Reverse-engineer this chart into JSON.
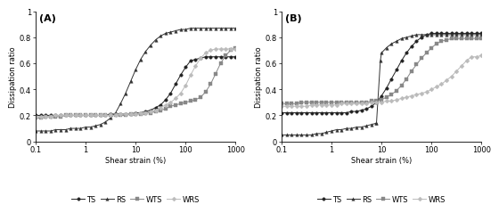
{
  "panel_A": {
    "label": "(A)",
    "TS": {
      "x": [
        0.1,
        0.13,
        0.16,
        0.2,
        0.25,
        0.32,
        0.4,
        0.5,
        0.63,
        0.79,
        1.0,
        1.26,
        1.58,
        2.0,
        2.51,
        3.16,
        3.98,
        5.01,
        6.31,
        7.94,
        10.0,
        12.6,
        15.8,
        20.0,
        25.1,
        31.6,
        39.8,
        50.1,
        63.1,
        79.4,
        100,
        126,
        158,
        200,
        251,
        316,
        398,
        501,
        631,
        794,
        1000
      ],
      "y": [
        0.2,
        0.2,
        0.2,
        0.2,
        0.2,
        0.2,
        0.2,
        0.2,
        0.2,
        0.2,
        0.2,
        0.2,
        0.2,
        0.2,
        0.2,
        0.21,
        0.21,
        0.21,
        0.21,
        0.21,
        0.22,
        0.22,
        0.23,
        0.24,
        0.26,
        0.28,
        0.32,
        0.37,
        0.44,
        0.51,
        0.57,
        0.62,
        0.63,
        0.64,
        0.65,
        0.65,
        0.65,
        0.65,
        0.65,
        0.65,
        0.65
      ],
      "marker": "o",
      "color": "#222222",
      "markersize": 2.5,
      "linestyle": "-"
    },
    "RS": {
      "x": [
        0.1,
        0.13,
        0.16,
        0.2,
        0.25,
        0.32,
        0.4,
        0.5,
        0.63,
        0.79,
        1.0,
        1.26,
        1.58,
        2.0,
        2.51,
        3.16,
        3.98,
        5.01,
        6.31,
        7.94,
        10.0,
        12.6,
        15.8,
        20.0,
        25.1,
        31.6,
        39.8,
        50.1,
        63.1,
        79.4,
        100,
        126,
        158,
        200,
        251,
        316,
        398,
        501,
        631,
        794,
        1000
      ],
      "y": [
        0.08,
        0.08,
        0.08,
        0.08,
        0.09,
        0.09,
        0.09,
        0.1,
        0.1,
        0.1,
        0.11,
        0.11,
        0.12,
        0.13,
        0.15,
        0.18,
        0.22,
        0.29,
        0.37,
        0.46,
        0.55,
        0.63,
        0.69,
        0.74,
        0.78,
        0.81,
        0.83,
        0.84,
        0.85,
        0.86,
        0.86,
        0.87,
        0.87,
        0.87,
        0.87,
        0.87,
        0.87,
        0.87,
        0.87,
        0.87,
        0.87
      ],
      "marker": "^",
      "color": "#333333",
      "markersize": 2.5,
      "linestyle": "-"
    },
    "WTS": {
      "x": [
        0.1,
        0.13,
        0.16,
        0.2,
        0.25,
        0.32,
        0.4,
        0.5,
        0.63,
        0.79,
        1.0,
        1.26,
        1.58,
        2.0,
        2.51,
        3.16,
        3.98,
        5.01,
        6.31,
        7.94,
        10.0,
        12.6,
        15.8,
        20.0,
        25.1,
        31.6,
        39.8,
        50.1,
        63.1,
        79.4,
        100,
        126,
        158,
        200,
        251,
        316,
        398,
        501,
        631,
        794,
        1000
      ],
      "y": [
        0.18,
        0.18,
        0.19,
        0.19,
        0.19,
        0.19,
        0.2,
        0.2,
        0.2,
        0.2,
        0.2,
        0.2,
        0.2,
        0.2,
        0.2,
        0.2,
        0.2,
        0.2,
        0.2,
        0.21,
        0.21,
        0.21,
        0.22,
        0.22,
        0.23,
        0.24,
        0.25,
        0.27,
        0.28,
        0.29,
        0.3,
        0.31,
        0.32,
        0.34,
        0.38,
        0.44,
        0.52,
        0.6,
        0.66,
        0.7,
        0.72
      ],
      "marker": "s",
      "color": "#888888",
      "markersize": 2.5,
      "linestyle": "-"
    },
    "WRS": {
      "x": [
        0.1,
        0.13,
        0.16,
        0.2,
        0.25,
        0.32,
        0.4,
        0.5,
        0.63,
        0.79,
        1.0,
        1.26,
        1.58,
        2.0,
        2.51,
        3.16,
        3.98,
        5.01,
        6.31,
        7.94,
        10.0,
        12.6,
        15.8,
        20.0,
        25.1,
        31.6,
        39.8,
        50.1,
        63.1,
        79.4,
        100,
        126,
        158,
        200,
        251,
        316,
        398,
        501,
        631,
        794,
        1000
      ],
      "y": [
        0.19,
        0.19,
        0.19,
        0.19,
        0.2,
        0.2,
        0.2,
        0.2,
        0.2,
        0.2,
        0.2,
        0.2,
        0.2,
        0.2,
        0.2,
        0.2,
        0.2,
        0.21,
        0.21,
        0.21,
        0.21,
        0.22,
        0.22,
        0.23,
        0.24,
        0.26,
        0.28,
        0.3,
        0.33,
        0.37,
        0.43,
        0.51,
        0.58,
        0.64,
        0.68,
        0.7,
        0.71,
        0.71,
        0.71,
        0.71,
        0.71
      ],
      "marker": "D",
      "color": "#bbbbbb",
      "markersize": 2.5,
      "linestyle": "-"
    }
  },
  "panel_B": {
    "label": "(B)",
    "TS": {
      "x": [
        0.1,
        0.13,
        0.16,
        0.2,
        0.25,
        0.32,
        0.4,
        0.5,
        0.63,
        0.79,
        1.0,
        1.26,
        1.58,
        2.0,
        2.51,
        3.16,
        3.98,
        5.01,
        6.31,
        7.94,
        10.0,
        12.6,
        15.8,
        20.0,
        25.1,
        31.6,
        39.8,
        50.1,
        63.1,
        79.4,
        100,
        126,
        158,
        200,
        251,
        316,
        398,
        501,
        631,
        794,
        1000
      ],
      "y": [
        0.22,
        0.22,
        0.22,
        0.22,
        0.22,
        0.22,
        0.22,
        0.22,
        0.22,
        0.22,
        0.22,
        0.22,
        0.22,
        0.22,
        0.23,
        0.23,
        0.24,
        0.25,
        0.27,
        0.3,
        0.35,
        0.41,
        0.48,
        0.55,
        0.62,
        0.68,
        0.73,
        0.77,
        0.8,
        0.82,
        0.83,
        0.83,
        0.83,
        0.83,
        0.83,
        0.83,
        0.83,
        0.83,
        0.83,
        0.83,
        0.83
      ],
      "marker": "o",
      "color": "#222222",
      "markersize": 2.5,
      "linestyle": "-"
    },
    "RS": {
      "x": [
        0.1,
        0.13,
        0.16,
        0.2,
        0.25,
        0.32,
        0.4,
        0.5,
        0.63,
        0.79,
        1.0,
        1.26,
        1.58,
        2.0,
        2.51,
        3.16,
        3.98,
        5.01,
        6.31,
        7.94,
        7.94,
        9.5,
        10.0,
        12.6,
        15.8,
        20.0,
        25.1,
        31.6,
        39.8,
        50.1,
        63.1,
        79.4,
        100,
        126,
        158,
        200,
        251,
        316,
        398,
        501,
        631,
        794,
        1000
      ],
      "y": [
        0.05,
        0.05,
        0.05,
        0.05,
        0.05,
        0.05,
        0.05,
        0.06,
        0.06,
        0.07,
        0.08,
        0.09,
        0.09,
        0.1,
        0.1,
        0.11,
        0.11,
        0.12,
        0.13,
        0.14,
        0.14,
        0.62,
        0.68,
        0.72,
        0.75,
        0.77,
        0.79,
        0.8,
        0.81,
        0.82,
        0.82,
        0.82,
        0.82,
        0.82,
        0.82,
        0.82,
        0.82,
        0.82,
        0.82,
        0.82,
        0.82,
        0.82,
        0.82
      ],
      "marker": "^",
      "color": "#333333",
      "markersize": 2.5,
      "linestyle": "-"
    },
    "WTS": {
      "x": [
        0.1,
        0.13,
        0.16,
        0.2,
        0.25,
        0.32,
        0.4,
        0.5,
        0.63,
        0.79,
        1.0,
        1.26,
        1.58,
        2.0,
        2.51,
        3.16,
        3.98,
        5.01,
        6.31,
        7.94,
        10.0,
        12.6,
        15.8,
        20.0,
        25.1,
        31.6,
        39.8,
        50.1,
        63.1,
        79.4,
        100,
        126,
        158,
        200,
        251,
        316,
        398,
        501,
        631,
        794,
        1000
      ],
      "y": [
        0.29,
        0.29,
        0.29,
        0.29,
        0.3,
        0.3,
        0.3,
        0.3,
        0.3,
        0.3,
        0.3,
        0.3,
        0.3,
        0.3,
        0.3,
        0.3,
        0.3,
        0.3,
        0.31,
        0.31,
        0.32,
        0.34,
        0.36,
        0.39,
        0.43,
        0.48,
        0.54,
        0.59,
        0.64,
        0.68,
        0.72,
        0.75,
        0.77,
        0.78,
        0.79,
        0.79,
        0.79,
        0.79,
        0.79,
        0.79,
        0.79
      ],
      "marker": "s",
      "color": "#888888",
      "markersize": 2.5,
      "linestyle": "-"
    },
    "WRS": {
      "x": [
        0.1,
        0.13,
        0.16,
        0.2,
        0.25,
        0.32,
        0.4,
        0.5,
        0.63,
        0.79,
        1.0,
        1.26,
        1.58,
        2.0,
        2.51,
        3.16,
        3.98,
        5.01,
        6.31,
        7.94,
        10.0,
        12.6,
        15.8,
        20.0,
        25.1,
        31.6,
        39.8,
        50.1,
        63.1,
        79.4,
        100,
        126,
        158,
        200,
        251,
        316,
        398,
        501,
        631,
        794,
        1000
      ],
      "y": [
        0.27,
        0.27,
        0.27,
        0.27,
        0.27,
        0.27,
        0.28,
        0.28,
        0.28,
        0.28,
        0.28,
        0.28,
        0.29,
        0.29,
        0.29,
        0.29,
        0.29,
        0.29,
        0.3,
        0.3,
        0.3,
        0.31,
        0.31,
        0.32,
        0.33,
        0.34,
        0.35,
        0.36,
        0.37,
        0.38,
        0.4,
        0.42,
        0.44,
        0.47,
        0.5,
        0.54,
        0.58,
        0.62,
        0.65,
        0.65,
        0.66
      ],
      "marker": "D",
      "color": "#bbbbbb",
      "markersize": 2.5,
      "linestyle": "-"
    }
  },
  "xlabel": "Shear strain (%)",
  "ylabel": "Dissipation ratio",
  "ylim": [
    0,
    1.0
  ],
  "xlim": [
    0.1,
    1000
  ],
  "yticks": [
    0,
    0.2,
    0.4,
    0.6,
    0.8,
    1
  ],
  "ytick_labels": [
    "0",
    "0.2",
    "0.4",
    "0.6",
    "0.8",
    "1"
  ],
  "xticks": [
    0.1,
    1,
    10,
    100,
    1000
  ],
  "xtick_labels": [
    "0.1",
    "1",
    "10",
    "100",
    "1000"
  ],
  "legend_order": [
    "TS",
    "RS",
    "WTS",
    "WRS"
  ],
  "background_color": "#ffffff",
  "fontsize_label": 6,
  "fontsize_tick": 6,
  "fontsize_legend": 6,
  "fontsize_panel_label": 8,
  "linewidth": 0.7
}
